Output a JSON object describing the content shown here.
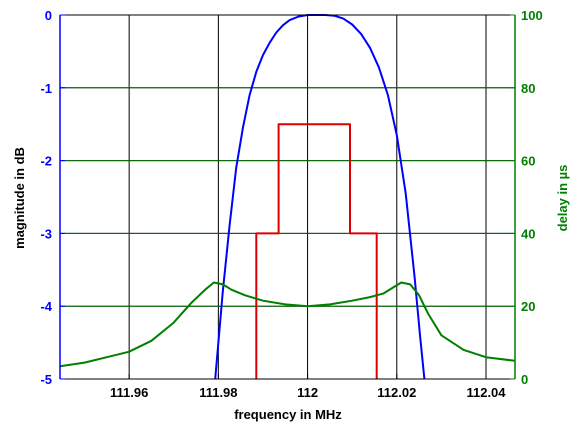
{
  "chart_data": {
    "type": "line",
    "xlabel": "frequency in MHz",
    "ylabel_left": "magnitude in dB",
    "ylabel_right": "delay in µs",
    "xlim": [
      111.9445,
      112.0465
    ],
    "ylim_left": [
      -5,
      0
    ],
    "ylim_right": [
      0,
      100
    ],
    "x_ticks": [
      111.96,
      111.98,
      112,
      112.02,
      112.04
    ],
    "x_tick_labels": [
      "111.96",
      "111.98",
      "112",
      "112.02",
      "112.04"
    ],
    "y_left_ticks": [
      0,
      -1,
      -2,
      -3,
      -4,
      -5
    ],
    "y_left_tick_labels": [
      "0",
      "-1",
      "-2",
      "-3",
      "-4",
      "-5"
    ],
    "y_right_ticks": [
      100,
      80,
      60,
      40,
      20,
      0
    ],
    "y_right_tick_labels": [
      "100",
      "80",
      "60",
      "40",
      "20",
      "0"
    ],
    "grid": true,
    "colors": {
      "magnitude": "#0000ff",
      "mask": "#e00000",
      "delay": "#007f00",
      "grid": "#000000"
    },
    "series": [
      {
        "axis": "left",
        "color": "#0000ff",
        "x": [
          111.9793,
          111.981,
          111.9825,
          111.984,
          111.9855,
          111.987,
          111.9885,
          111.99,
          111.9915,
          111.993,
          111.9945,
          111.996,
          111.998,
          112.0,
          112.002,
          112.004,
          112.006,
          112.008,
          112.01,
          112.012,
          112.014,
          112.016,
          112.018,
          112.02,
          112.022,
          112.024,
          112.0252,
          112.0262
        ],
        "y": [
          -5.0,
          -3.8,
          -2.9,
          -2.1,
          -1.55,
          -1.1,
          -0.78,
          -0.55,
          -0.38,
          -0.24,
          -0.14,
          -0.07,
          -0.02,
          0.0,
          0.0,
          0.0,
          -0.01,
          -0.05,
          -0.13,
          -0.26,
          -0.45,
          -0.72,
          -1.1,
          -1.65,
          -2.45,
          -3.6,
          -4.4,
          -5.0
        ]
      },
      {
        "axis": "right",
        "color": "#e00000",
        "x": [
          111.9885,
          111.9885,
          111.9935,
          111.9935,
          112.0095,
          112.0095,
          112.0155,
          112.0155
        ],
        "y": [
          0,
          40,
          40,
          70,
          70,
          40,
          40,
          0
        ]
      },
      {
        "axis": "right",
        "color": "#007f00",
        "x": [
          111.9445,
          111.95,
          111.955,
          111.96,
          111.965,
          111.97,
          111.974,
          111.977,
          111.979,
          111.981,
          111.983,
          111.986,
          111.99,
          111.995,
          112.0,
          112.005,
          112.01,
          112.014,
          112.017,
          112.019,
          112.021,
          112.023,
          112.025,
          112.027,
          112.03,
          112.035,
          112.04,
          112.0465
        ],
        "y": [
          3.5,
          4.5,
          6,
          7.5,
          10.5,
          15.5,
          21,
          24.5,
          26.5,
          26,
          24.5,
          23,
          21.5,
          20.5,
          20,
          20.5,
          21.5,
          22.5,
          23.5,
          25,
          26.5,
          26,
          23,
          18,
          12,
          8,
          6,
          5
        ]
      }
    ]
  }
}
